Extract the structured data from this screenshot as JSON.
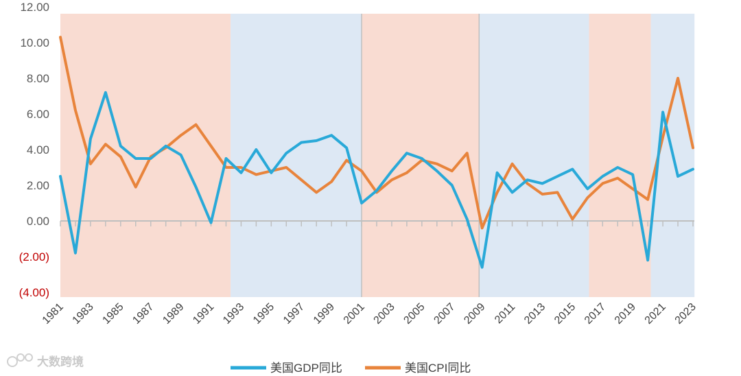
{
  "chart_data": {
    "type": "line",
    "title": "",
    "xlabel": "",
    "ylabel": "",
    "ylim": [
      -4,
      12
    ],
    "y_ticks": [
      12,
      10,
      8,
      6,
      4,
      2,
      0,
      -2,
      -4
    ],
    "y_tick_labels": [
      "12.00",
      "10.00",
      "8.00",
      "6.00",
      "4.00",
      "2.00",
      "0.00",
      "(2.00)",
      "(4.00)"
    ],
    "x": [
      1981,
      1982,
      1983,
      1984,
      1985,
      1986,
      1987,
      1988,
      1989,
      1990,
      1991,
      1992,
      1993,
      1994,
      1995,
      1996,
      1997,
      1998,
      1999,
      2000,
      2001,
      2002,
      2003,
      2004,
      2005,
      2006,
      2007,
      2008,
      2009,
      2010,
      2011,
      2012,
      2013,
      2014,
      2015,
      2016,
      2017,
      2018,
      2019,
      2020,
      2021,
      2022,
      2023
    ],
    "x_tick_labels": [
      "1981",
      "1983",
      "1985",
      "1987",
      "1989",
      "1991",
      "1993",
      "1995",
      "1997",
      "1999",
      "2001",
      "2003",
      "2005",
      "2007",
      "2009",
      "2011",
      "2013",
      "2015",
      "2017",
      "2019",
      "2021",
      "2023"
    ],
    "series": [
      {
        "name": "美国GDP同比",
        "color": "#29a9d8",
        "values": [
          2.5,
          -1.8,
          4.6,
          7.2,
          4.2,
          3.5,
          3.5,
          4.2,
          3.7,
          1.9,
          -0.1,
          3.5,
          2.7,
          4.0,
          2.7,
          3.8,
          4.4,
          4.5,
          4.8,
          4.1,
          1.0,
          1.7,
          2.8,
          3.8,
          3.5,
          2.8,
          2.0,
          0.1,
          -2.6,
          2.7,
          1.6,
          2.3,
          2.1,
          2.5,
          2.9,
          1.8,
          2.5,
          3.0,
          2.6,
          -2.2,
          6.1,
          2.5,
          2.9
        ]
      },
      {
        "name": "美国CPI同比",
        "color": "#e8843c",
        "values": [
          10.3,
          6.2,
          3.2,
          4.3,
          3.6,
          1.9,
          3.6,
          4.1,
          4.8,
          5.4,
          4.2,
          3.0,
          3.0,
          2.6,
          2.8,
          3.0,
          2.3,
          1.6,
          2.2,
          3.4,
          2.8,
          1.6,
          2.3,
          2.7,
          3.4,
          3.2,
          2.8,
          3.8,
          -0.4,
          1.6,
          3.2,
          2.1,
          1.5,
          1.6,
          0.1,
          1.3,
          2.1,
          2.4,
          1.8,
          1.2,
          4.7,
          8.0,
          4.1
        ]
      }
    ],
    "regions": [
      {
        "from": 1981,
        "to": 1992.3,
        "color": "#f9dcd2"
      },
      {
        "from": 1992.3,
        "to": 2001,
        "color": "#dde8f4"
      },
      {
        "from": 2001,
        "to": 2008.8,
        "color": "#f9dcd2"
      },
      {
        "from": 2008.8,
        "to": 2016.1,
        "color": "#dde8f4"
      },
      {
        "from": 2016.1,
        "to": 2020.2,
        "color": "#f9dcd2"
      },
      {
        "from": 2020.2,
        "to": 2023.1,
        "color": "#dde8f4"
      }
    ],
    "legend_position": "bottom"
  },
  "watermark": {
    "text": "大数跨境"
  }
}
